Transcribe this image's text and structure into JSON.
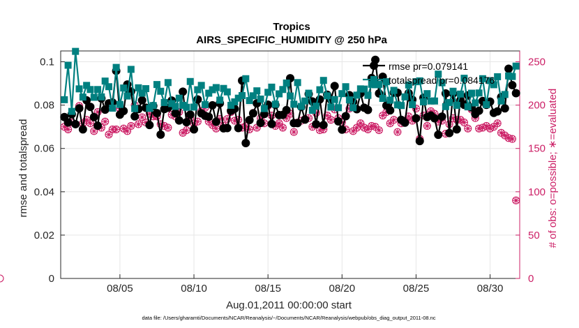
{
  "chart_data": {
    "type": "line",
    "title": "Tropics",
    "subtitle": "AIRS_SPECIFIC_HUMIDITY @ 250 hPa",
    "xlabel": "Aug.01,2011 00:00:00 start",
    "ylabel_left": "rmse and totalspread",
    "ylabel_right": "# of obs: o=possible; ∗=evaluated",
    "footer": "data file: /Users/gharamti/Documents/NCAR/Reanalysis/~/Documents/NCAR/Reanalysis/webpub/obs_diag_output_2011-08.nc",
    "xlim": [
      1,
      32
    ],
    "ylim_left": [
      0,
      0.105
    ],
    "ylim_right": [
      0,
      262.5
    ],
    "x_ticks": [
      5,
      10,
      15,
      20,
      25,
      30
    ],
    "x_tick_labels": [
      "08/05",
      "08/10",
      "08/15",
      "08/20",
      "08/25",
      "08/30"
    ],
    "y_left_ticks": [
      0,
      0.02,
      0.04,
      0.06,
      0.08,
      0.1
    ],
    "y_left_tick_labels": [
      "0",
      "0.02",
      "0.04",
      "0.06",
      "0.08",
      "0.1"
    ],
    "y_right_ticks": [
      0,
      50,
      100,
      150,
      200,
      250
    ],
    "y_right_tick_labels": [
      "0",
      "50",
      "100",
      "150",
      "200",
      "250"
    ],
    "series_x": [
      1.25,
      1.5,
      1.75,
      2,
      2.25,
      2.5,
      2.75,
      3,
      3.25,
      3.5,
      3.75,
      4,
      4.25,
      4.5,
      4.75,
      5,
      5.25,
      5.5,
      5.75,
      6,
      6.25,
      6.5,
      6.75,
      7,
      7.25,
      7.5,
      7.75,
      8,
      8.25,
      8.5,
      8.75,
      9,
      9.25,
      9.5,
      9.75,
      10,
      10.25,
      10.5,
      10.75,
      11,
      11.25,
      11.5,
      11.75,
      12,
      12.25,
      12.5,
      12.75,
      13,
      13.25,
      13.5,
      13.75,
      14,
      14.25,
      14.5,
      14.75,
      15,
      15.25,
      15.5,
      15.75,
      16,
      16.25,
      16.5,
      16.75,
      17,
      17.25,
      17.5,
      17.75,
      18,
      18.25,
      18.5,
      18.75,
      19,
      19.25,
      19.5,
      19.75,
      20,
      20.25,
      20.5,
      20.75,
      21,
      21.25,
      21.5,
      21.75,
      22,
      22.25,
      22.5,
      22.75,
      23,
      23.25,
      23.5,
      23.75,
      24,
      24.25,
      24.5,
      24.75,
      25,
      25.25,
      25.5,
      25.75,
      26,
      26.25,
      26.5,
      26.75,
      27,
      27.25,
      27.5,
      27.75,
      28,
      28.25,
      28.5,
      28.75,
      29,
      29.25,
      29.5,
      29.75,
      30,
      30.25,
      30.5,
      30.75,
      31,
      31.25,
      31.5,
      31.75
    ],
    "series": [
      {
        "name": "rmse",
        "legend": "rmse pr=0.079141",
        "color": "#000000",
        "marker": "filled-circle",
        "axis": "left",
        "values": [
          0.0745,
          0.072,
          0.0758,
          0.0712,
          0.0785,
          0.0688,
          0.0822,
          0.0792,
          0.0745,
          0.0705,
          0.0831,
          0.0779,
          0.0808,
          0.0812,
          0.0958,
          0.0756,
          0.0773,
          0.0895,
          0.0863,
          0.0748,
          0.0782,
          0.0822,
          0.0788,
          0.0708,
          0.0796,
          0.0763,
          0.0664,
          0.0782,
          0.0788,
          0.0821,
          0.0763,
          0.0729,
          0.0862,
          0.0721,
          0.0756,
          0.0688,
          0.0826,
          0.0762,
          0.0751,
          0.0746,
          0.0799,
          0.0723,
          0.0809,
          0.0693,
          0.0694,
          0.0774,
          0.0783,
          0.0694,
          0.0913,
          0.0625,
          0.0731,
          0.0762,
          0.0808,
          0.0718,
          0.0759,
          0.0802,
          0.0713,
          0.0801,
          0.0754,
          0.0755,
          0.0777,
          0.0924,
          0.0717,
          0.0717,
          0.0792,
          0.0733,
          0.0851,
          0.0817,
          0.0712,
          0.0826,
          0.0708,
          0.0848,
          0.0825,
          0.0888,
          0.0725,
          0.0687,
          0.0749,
          0.0846,
          0.0815,
          0.0781,
          0.0854,
          0.0788,
          0.0778,
          0.0925,
          0.1009,
          0.0854,
          0.0931,
          0.0798,
          0.0776,
          0.0858,
          0.0857,
          0.0732,
          0.0719,
          0.0855,
          0.0825,
          0.0739,
          0.0634,
          0.0834,
          0.0745,
          0.0752,
          0.0739,
          0.0663,
          0.0747,
          0.0854,
          0.0671,
          0.0853,
          0.0688,
          0.0823,
          0.0801,
          0.0845,
          0.0789,
          0.0759,
          0.0774,
          0.0819,
          0.0801,
          0.0816,
          0.0764,
          0.0771,
          0.0837,
          0.0785,
          0.0968,
          0.0892,
          0.0855
        ]
      },
      {
        "name": "totalspread",
        "legend": "totalspread pr=0.084176",
        "color": "#008080",
        "marker": "filled-square",
        "axis": "left",
        "values": [
          0.0825,
          0.0984,
          0.0771,
          0.1048,
          0.0875,
          0.0837,
          0.0891,
          0.0872,
          0.0836,
          0.0872,
          0.0838,
          0.0911,
          0.0885,
          0.0786,
          0.0974,
          0.0803,
          0.0879,
          0.0842,
          0.0965,
          0.0784,
          0.088,
          0.0855,
          0.0876,
          0.0785,
          0.0798,
          0.0895,
          0.0864,
          0.0812,
          0.0904,
          0.0807,
          0.0794,
          0.0832,
          0.0799,
          0.079,
          0.0909,
          0.0791,
          0.0871,
          0.0891,
          0.0802,
          0.0855,
          0.0871,
          0.0881,
          0.0823,
          0.0877,
          0.0861,
          0.0799,
          0.0815,
          0.0832,
          0.0844,
          0.0922,
          0.0821,
          0.0843,
          0.0866,
          0.0828,
          0.0784,
          0.0859,
          0.0883,
          0.0804,
          0.0852,
          0.0872,
          0.0902,
          0.0842,
          0.0804,
          0.0904,
          0.0794,
          0.0819,
          0.0855,
          0.0776,
          0.0795,
          0.0871,
          0.0914,
          0.0843,
          0.0791,
          0.0826,
          0.0788,
          0.0853,
          0.0885,
          0.0824,
          0.0788,
          0.0846,
          0.0875,
          0.0874,
          0.0845,
          0.0896,
          0.0894,
          0.0896,
          0.0831,
          0.0908,
          0.0823,
          0.0868,
          0.0801,
          0.0798,
          0.0838,
          0.0893,
          0.0802,
          0.0908,
          0.0912,
          0.0815,
          0.0853,
          0.0819,
          0.0819,
          0.0943,
          0.0903,
          0.0793,
          0.0812,
          0.0864,
          0.0799,
          0.0851,
          0.0924,
          0.0792,
          0.0855,
          0.081,
          0.0856,
          0.0922,
          0.0802,
          0.0913,
          0.0894,
          0.0931,
          0.0819,
          0.0849,
          0.0935,
          0.0932,
          0.098
        ]
      },
      {
        "name": "obs possible",
        "color": "#cc1f66",
        "marker": "open-circle",
        "axis": "right",
        "values": [
          175,
          172,
          180,
          178,
          199,
          179,
          183,
          179,
          170,
          192,
          174,
          181,
          166,
          172,
          172,
          196,
          173,
          170,
          176,
          200,
          178,
          186,
          180,
          190,
          187,
          187,
          178,
          176,
          174,
          189,
          187,
          192,
          168,
          171,
          185,
          179,
          181,
          193,
          197,
          181,
          177,
          173,
          184,
          176,
          184,
          192,
          182,
          183,
          174,
          176,
          172,
          191,
          174,
          185,
          179,
          199,
          188,
          176,
          179,
          174,
          185,
          190,
          169,
          180,
          182,
          184,
          185,
          175,
          191,
          171,
          172,
          188,
          183,
          195,
          185,
          180,
          172,
          196,
          170,
          174,
          179,
          174,
          172,
          176,
          175,
          171,
          188,
          192,
          179,
          183,
          169,
          179,
          182,
          187,
          182,
          196,
          161,
          188,
          176,
          193,
          190,
          181,
          182,
          167,
          178,
          185,
          183,
          183,
          180,
          173,
          195,
          185,
          173,
          174,
          176,
          173,
          175,
          179,
          168,
          165,
          162,
          161,
          90,
          0
        ]
      },
      {
        "name": "obs evaluated",
        "color": "#cc1f66",
        "marker": "asterisk",
        "axis": "right",
        "values": [
          175,
          172,
          180,
          178,
          199,
          179,
          183,
          179,
          170,
          192,
          174,
          181,
          166,
          172,
          172,
          196,
          173,
          170,
          176,
          200,
          178,
          186,
          180,
          190,
          187,
          187,
          178,
          176,
          174,
          189,
          187,
          192,
          168,
          171,
          185,
          179,
          181,
          193,
          197,
          181,
          177,
          173,
          184,
          176,
          184,
          192,
          182,
          183,
          174,
          176,
          172,
          191,
          174,
          185,
          179,
          199,
          188,
          176,
          179,
          174,
          185,
          190,
          169,
          180,
          182,
          184,
          185,
          175,
          191,
          171,
          172,
          188,
          183,
          195,
          185,
          180,
          172,
          196,
          170,
          174,
          179,
          174,
          172,
          176,
          175,
          171,
          188,
          192,
          179,
          183,
          169,
          179,
          182,
          187,
          182,
          196,
          161,
          188,
          176,
          193,
          190,
          181,
          182,
          167,
          178,
          185,
          183,
          183,
          180,
          173,
          195,
          185,
          173,
          174,
          176,
          173,
          175,
          179,
          168,
          165,
          162,
          161,
          90,
          0
        ]
      }
    ],
    "legend_position": "top-right",
    "grid": true
  }
}
